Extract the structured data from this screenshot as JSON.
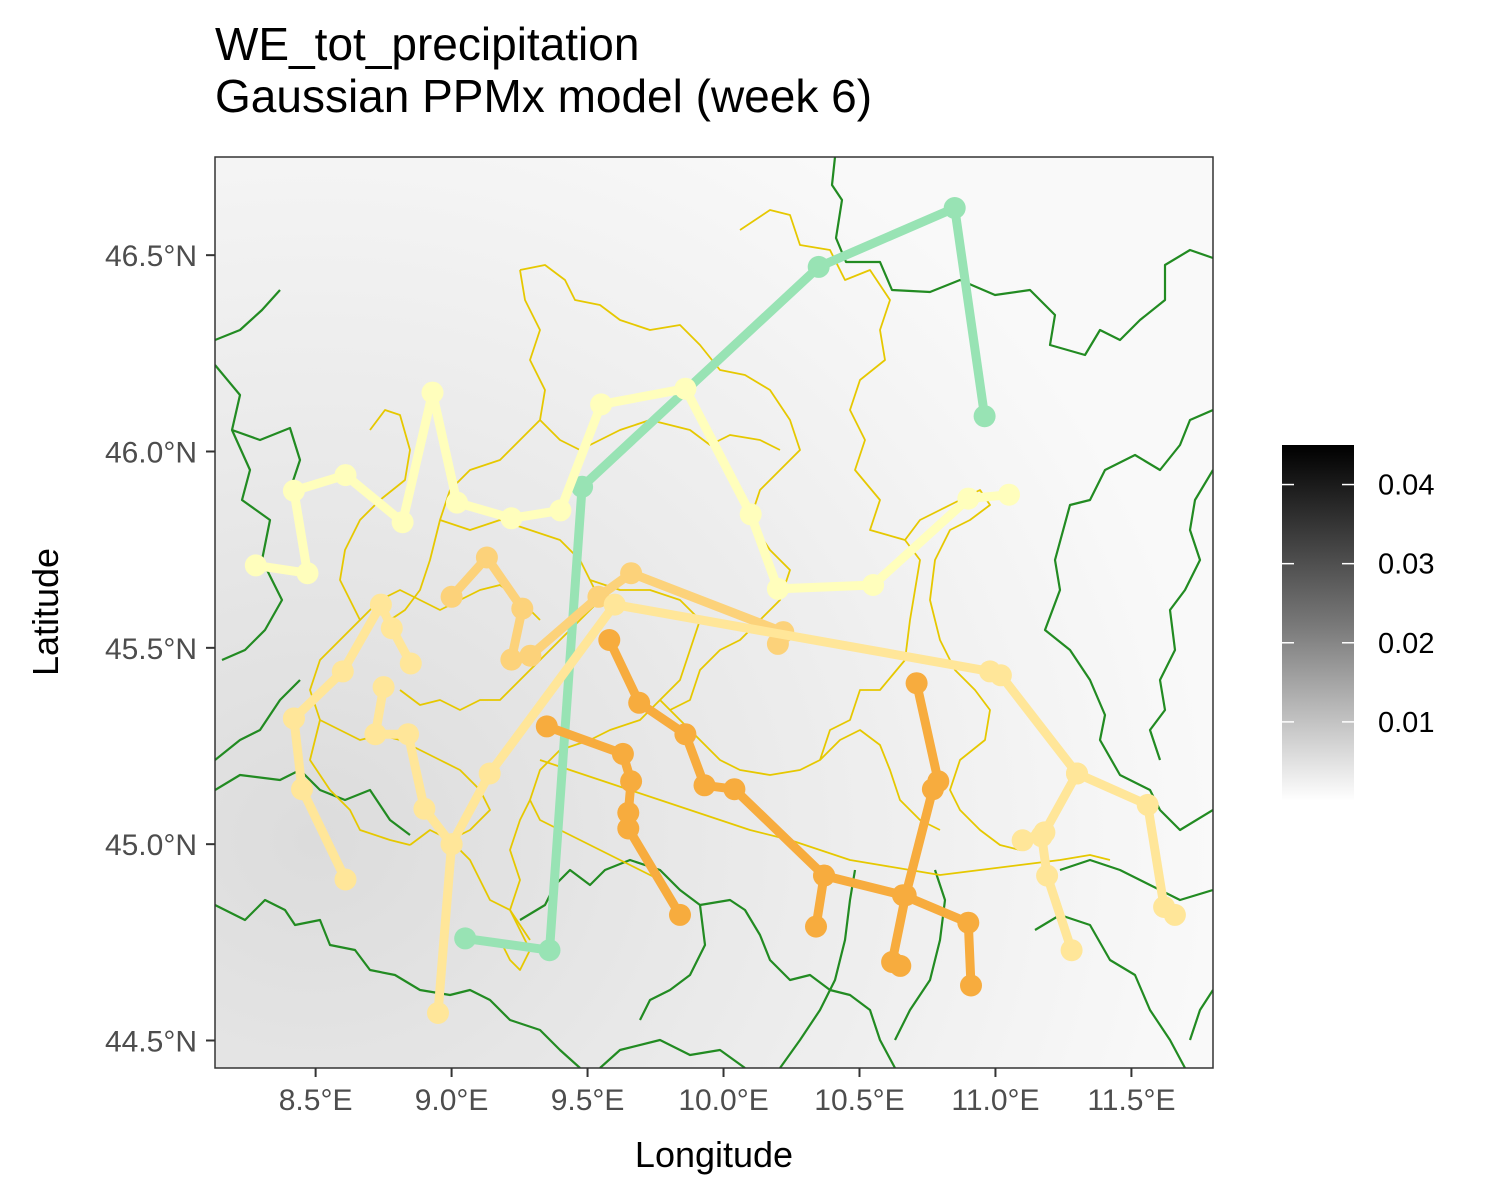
{
  "title": {
    "line1": "WE_tot_precipitation",
    "line2": "Gaussian PPMx model (week 6)"
  },
  "colors": {
    "background_light": "#fafafa",
    "background_dark": "#dedede",
    "country_border": "#228b22",
    "region_border": "#e6c800",
    "panel_border": "#333333"
  },
  "chart_data": {
    "type": "map",
    "xlabel": "Longitude",
    "ylabel": "Latitude",
    "xlim": [
      8.13,
      11.8
    ],
    "ylim": [
      44.43,
      46.75
    ],
    "x_ticks": [
      {
        "value": 8.5,
        "label": "8.5°E"
      },
      {
        "value": 9.0,
        "label": "9.0°E"
      },
      {
        "value": 9.5,
        "label": "9.5°E"
      },
      {
        "value": 10.0,
        "label": "10.0°E"
      },
      {
        "value": 10.5,
        "label": "10.5°E"
      },
      {
        "value": 11.0,
        "label": "11.0°E"
      },
      {
        "value": 11.5,
        "label": "11.5°E"
      }
    ],
    "y_ticks": [
      {
        "value": 44.5,
        "label": "44.5°N"
      },
      {
        "value": 45.0,
        "label": "45.0°N"
      },
      {
        "value": 45.5,
        "label": "45.5°N"
      },
      {
        "value": 46.0,
        "label": "46.0°N"
      },
      {
        "value": 46.5,
        "label": "46.5°N"
      }
    ],
    "legend": {
      "placement": "right",
      "min": 0,
      "max": 0.045,
      "breaks": [
        {
          "value": 0.01,
          "label": "0.01"
        },
        {
          "value": 0.02,
          "label": "0.02"
        },
        {
          "value": 0.03,
          "label": "0.03"
        },
        {
          "value": 0.04,
          "label": "0.04"
        }
      ]
    },
    "clusters": [
      {
        "color": "#98e3b4",
        "paths": [
          [
            [
              10.96,
              46.09
            ],
            [
              10.85,
              46.62
            ],
            [
              10.35,
              46.47
            ],
            [
              9.48,
              45.91
            ],
            [
              9.36,
              44.73
            ],
            [
              9.05,
              44.76
            ]
          ]
        ]
      },
      {
        "color": "#f7ac3e",
        "paths": [
          [
            [
              9.35,
              45.3
            ],
            [
              9.63,
              45.23
            ],
            [
              9.66,
              45.16
            ],
            [
              9.65,
              45.08
            ],
            [
              9.65,
              45.04
            ],
            [
              9.84,
              44.82
            ]
          ],
          [
            [
              9.58,
              45.52
            ],
            [
              9.69,
              45.36
            ],
            [
              9.86,
              45.28
            ],
            [
              9.93,
              45.15
            ],
            [
              10.04,
              45.14
            ],
            [
              10.37,
              44.92
            ],
            [
              10.66,
              44.87
            ],
            [
              10.9,
              44.8
            ],
            [
              10.91,
              44.64
            ]
          ],
          [
            [
              10.71,
              45.41
            ],
            [
              10.79,
              45.16
            ],
            [
              10.77,
              45.14
            ],
            [
              10.67,
              44.87
            ],
            [
              10.62,
              44.7
            ],
            [
              10.65,
              44.69
            ]
          ],
          [
            [
              10.37,
              44.92
            ],
            [
              10.34,
              44.79
            ]
          ]
        ]
      },
      {
        "color": "#fcd27a",
        "paths": [
          [
            [
              9.0,
              45.63
            ],
            [
              9.13,
              45.73
            ],
            [
              9.26,
              45.6
            ],
            [
              9.22,
              45.47
            ],
            [
              9.29,
              45.48
            ],
            [
              9.54,
              45.63
            ],
            [
              9.66,
              45.69
            ],
            [
              10.22,
              45.54
            ],
            [
              10.2,
              45.51
            ]
          ]
        ]
      },
      {
        "color": "#ffe699",
        "paths": [
          [
            [
              8.42,
              45.32
            ],
            [
              8.45,
              45.14
            ],
            [
              8.61,
              44.91
            ]
          ],
          [
            [
              8.42,
              45.32
            ],
            [
              8.6,
              45.44
            ],
            [
              8.74,
              45.61
            ],
            [
              8.78,
              45.55
            ],
            [
              8.85,
              45.46
            ]
          ],
          [
            [
              8.75,
              45.4
            ],
            [
              8.72,
              45.28
            ],
            [
              8.84,
              45.28
            ],
            [
              8.9,
              45.09
            ],
            [
              9.0,
              45.0
            ],
            [
              8.95,
              44.57
            ]
          ],
          [
            [
              9.0,
              45.0
            ],
            [
              9.14,
              45.18
            ],
            [
              9.6,
              45.61
            ],
            [
              10.98,
              45.44
            ],
            [
              11.02,
              45.43
            ],
            [
              11.3,
              45.18
            ],
            [
              11.56,
              45.1
            ],
            [
              11.62,
              44.84
            ],
            [
              11.66,
              44.82
            ]
          ],
          [
            [
              11.3,
              45.18
            ],
            [
              11.18,
              45.03
            ],
            [
              11.1,
              45.01
            ]
          ],
          [
            [
              11.17,
              45.02
            ],
            [
              11.19,
              44.92
            ],
            [
              11.28,
              44.73
            ]
          ]
        ]
      },
      {
        "color": "#fffebc",
        "paths": [
          [
            [
              8.28,
              45.71
            ],
            [
              8.47,
              45.69
            ],
            [
              8.42,
              45.9
            ],
            [
              8.61,
              45.94
            ],
            [
              8.82,
              45.82
            ],
            [
              8.93,
              46.15
            ],
            [
              9.02,
              45.87
            ],
            [
              9.22,
              45.83
            ],
            [
              9.4,
              45.85
            ],
            [
              9.55,
              46.12
            ],
            [
              9.86,
              46.16
            ],
            [
              10.1,
              45.84
            ],
            [
              10.2,
              45.65
            ],
            [
              10.55,
              45.66
            ],
            [
              10.9,
              45.88
            ],
            [
              11.05,
              45.89
            ]
          ]
        ]
      }
    ]
  }
}
